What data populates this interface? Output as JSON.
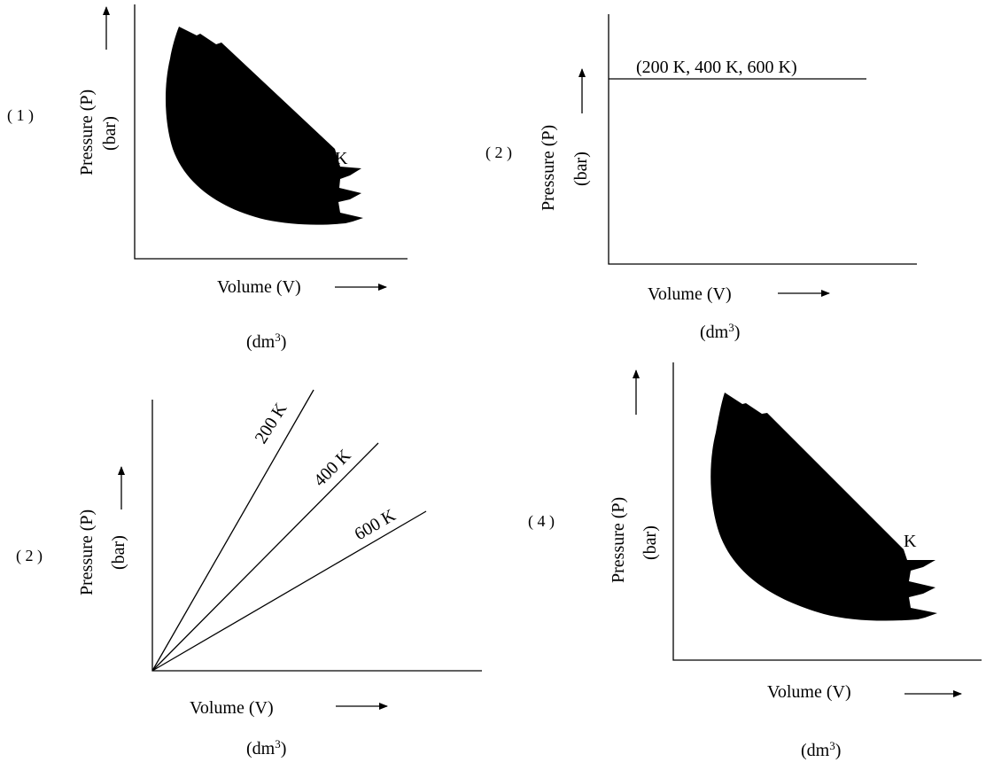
{
  "panels": [
    {
      "option_label": "( 1 )",
      "ylabel": "Pressure (P)",
      "yunit": "(bar)",
      "xlabel": "Volume (V)",
      "xunit": "(dm",
      "xunit_sup": "3",
      "xunit_end": ")",
      "curve_label": "K"
    },
    {
      "option_label": "( 2 )",
      "ylabel": "Pressure (P)",
      "yunit": "(bar)",
      "xlabel": "Volume (V)",
      "xunit": "(dm",
      "xunit_sup": "3",
      "xunit_end": ")",
      "line_label": "(200 K, 400 K, 600 K)"
    },
    {
      "option_label": "( 2 )",
      "ylabel": "Pressure (P)",
      "yunit": "(bar)",
      "xlabel": "Volume (V)",
      "xunit": "(dm",
      "xunit_sup": "3",
      "xunit_end": ")",
      "line_labels": [
        "200 K",
        "400 K",
        "600 K"
      ]
    },
    {
      "option_label": "( 4 )",
      "ylabel": "Pressure (P)",
      "yunit": "(bar)",
      "xlabel": "Volume (V)",
      "xunit": "(dm",
      "xunit_sup": "3",
      "xunit_end": ")",
      "curve_label": "K"
    }
  ]
}
